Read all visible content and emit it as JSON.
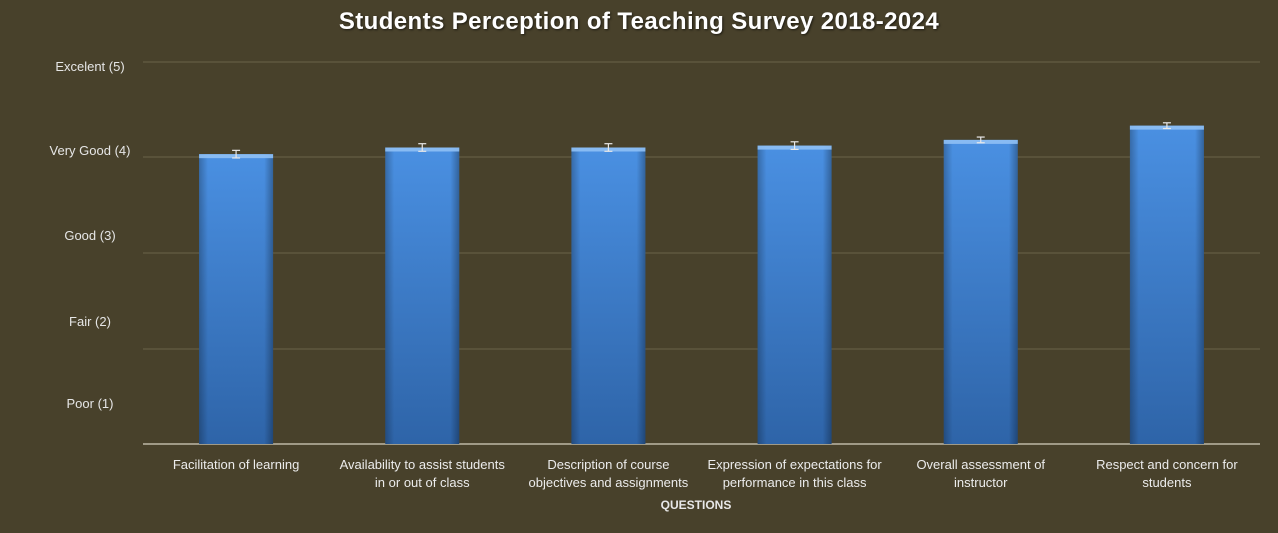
{
  "chart_data": {
    "type": "bar",
    "title": "Students Perception of Teaching Survey 2018-2024",
    "xlabel": "QUESTIONS",
    "ylabel": "",
    "ylim": [
      1,
      5
    ],
    "y_tick_labels": [
      {
        "value": 5,
        "label": "Excelent (5)"
      },
      {
        "value": 4,
        "label": "Very Good (4)"
      },
      {
        "value": 3,
        "label": "Good (3)"
      },
      {
        "value": 2,
        "label": "Fair (2)"
      },
      {
        "value": 1,
        "label": "Poor (1)"
      }
    ],
    "categories": [
      [
        "Facilitation of learning"
      ],
      [
        "Availability to assist students",
        "in or out of class"
      ],
      [
        "Description of course",
        "objectives and assignments"
      ],
      [
        "Expression of expectations for",
        "performance in this class"
      ],
      [
        "Overall assessment of",
        "instructor"
      ],
      [
        "Respect and concern for",
        "students"
      ]
    ],
    "values": [
      4.03,
      4.1,
      4.1,
      4.12,
      4.18,
      4.33
    ],
    "error": [
      0.04,
      0.04,
      0.04,
      0.04,
      0.03,
      0.03
    ],
    "grid": true,
    "bar_color": "#3d7fd0"
  }
}
